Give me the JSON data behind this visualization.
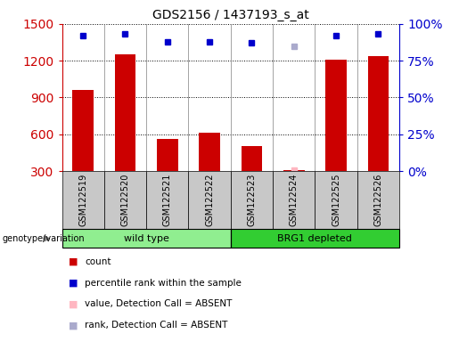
{
  "title": "GDS2156 / 1437193_s_at",
  "samples": [
    "GSM122519",
    "GSM122520",
    "GSM122521",
    "GSM122522",
    "GSM122523",
    "GSM122524",
    "GSM122525",
    "GSM122526"
  ],
  "counts": [
    960,
    1250,
    560,
    610,
    500,
    310,
    1210,
    1240
  ],
  "percentile_ranks": [
    92,
    93,
    88,
    88,
    87,
    null,
    92,
    93
  ],
  "absent_value": [
    null,
    null,
    null,
    null,
    null,
    310,
    null,
    null
  ],
  "absent_rank": [
    null,
    null,
    null,
    null,
    null,
    85,
    null,
    null
  ],
  "groups": [
    {
      "label": "wild type",
      "start": 0,
      "end": 4,
      "color": "#90EE90"
    },
    {
      "label": "BRG1 depleted",
      "start": 4,
      "end": 8,
      "color": "#32CD32"
    }
  ],
  "ylim_left": [
    300,
    1500
  ],
  "ylim_right": [
    0,
    100
  ],
  "yticks_left": [
    300,
    600,
    900,
    1200,
    1500
  ],
  "yticks_right": [
    0,
    25,
    50,
    75,
    100
  ],
  "bar_color": "#CC0000",
  "dot_color_present": "#0000CC",
  "dot_color_absent_val": "#FFB6C1",
  "dot_color_absent_rank": "#AAAACC",
  "grid_color": "#000000",
  "bg_plot": "#FFFFFF",
  "bg_xtick": "#C8C8C8",
  "left_tick_color": "#CC0000",
  "right_tick_color": "#0000CC",
  "label_genotype": "genotype/variation",
  "legend_items": [
    {
      "color": "#CC0000",
      "label": "count"
    },
    {
      "color": "#0000CC",
      "label": "percentile rank within the sample"
    },
    {
      "color": "#FFB6C1",
      "label": "value, Detection Call = ABSENT"
    },
    {
      "color": "#AAAACC",
      "label": "rank, Detection Call = ABSENT"
    }
  ]
}
